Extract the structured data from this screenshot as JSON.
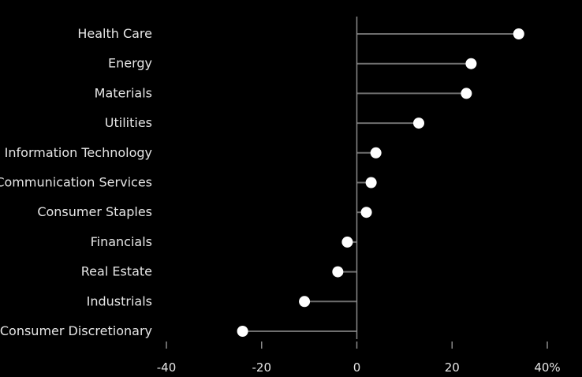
{
  "chart_data": {
    "type": "lollipop",
    "categories": [
      "Health Care",
      "Energy",
      "Materials",
      "Utilities",
      "Information Technology",
      "Communication Services",
      "Consumer Staples",
      "Financials",
      "Real Estate",
      "Industrials",
      "Consumer Discretionary"
    ],
    "values": [
      34,
      24,
      23,
      13,
      4,
      3,
      2,
      -2,
      -4,
      -11,
      -24
    ],
    "xlim": [
      -40,
      40
    ],
    "xticks": [
      -40,
      -20,
      0,
      20,
      40
    ],
    "xtick_labels": [
      "-40",
      "-20",
      "0",
      "20",
      "40%"
    ],
    "grid": false,
    "legend": "none",
    "colors": {
      "background": "#000000",
      "text": "#e6e6e6",
      "stem": "#6e6e6e",
      "axis": "#8a8a8a",
      "dot": "#ffffff"
    }
  }
}
